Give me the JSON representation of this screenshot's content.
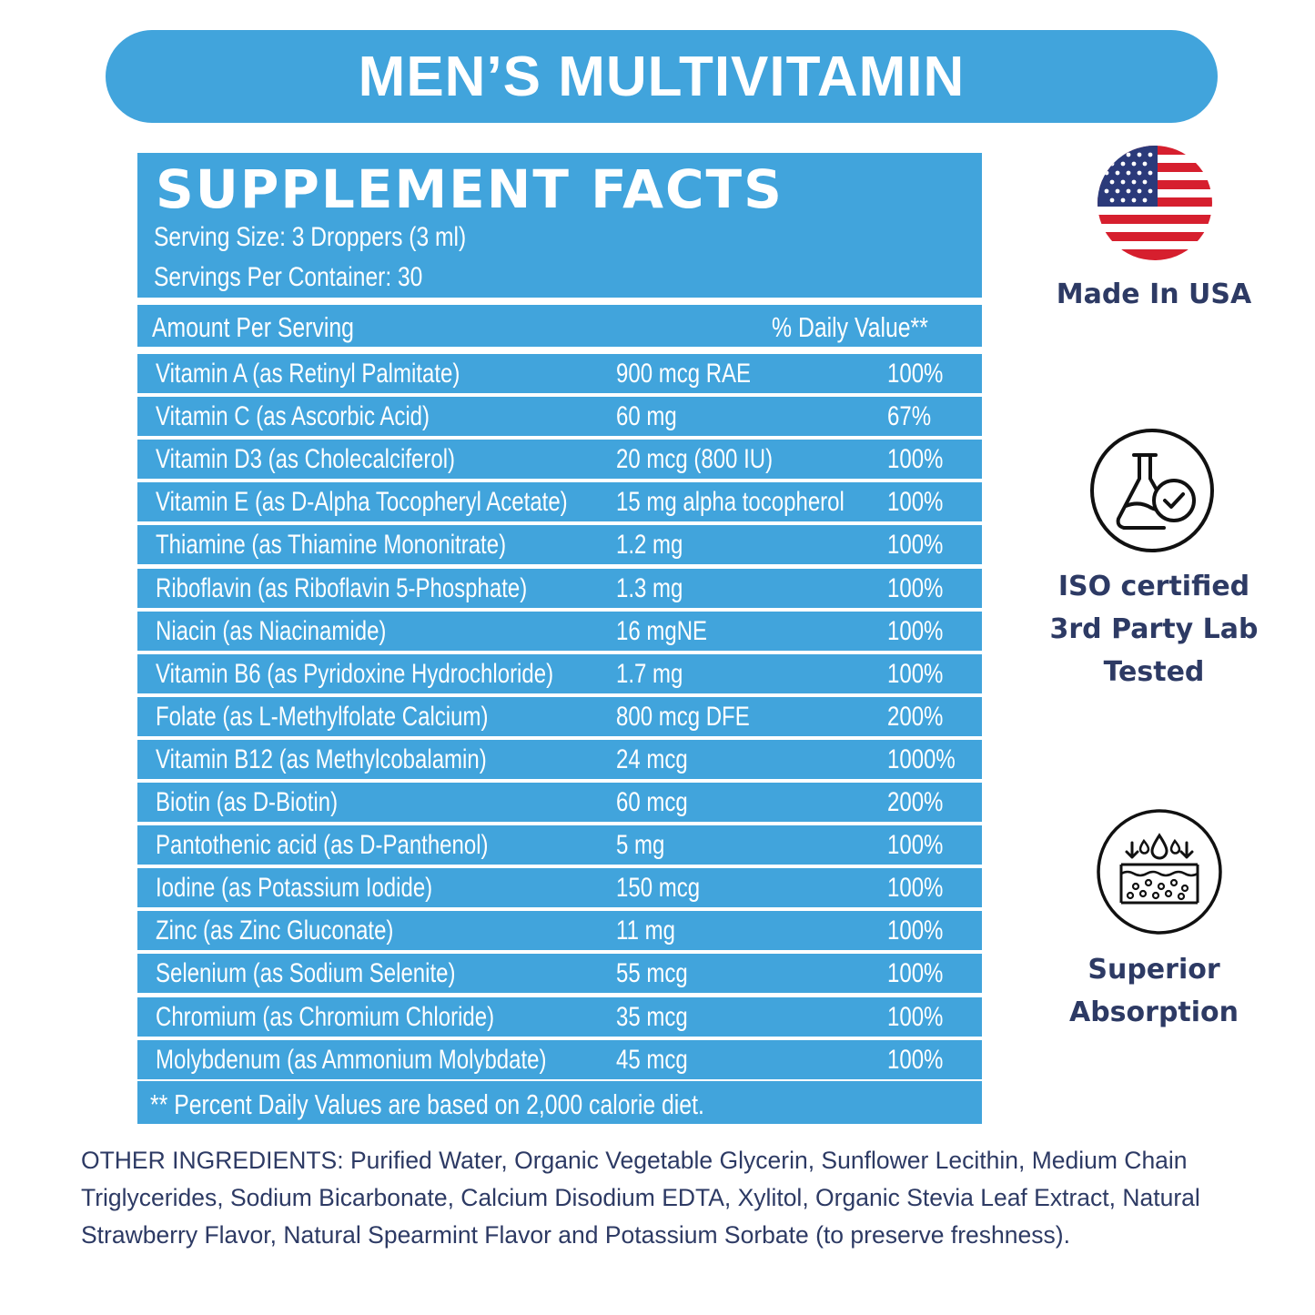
{
  "title": "MEN’S MULTIVITAMIN",
  "facts": {
    "heading": "SUPPLEMENT FACTS",
    "serving_size": "Serving Size: 3 Droppers (3 ml)",
    "servings_per_container": "Servings Per Container: 30",
    "amount_header": "Amount Per Serving",
    "dv_header": "% Daily Value**",
    "rows": [
      {
        "name": "Vitamin A (as Retinyl Palmitate)",
        "amount": "900 mcg RAE",
        "dv": "100%"
      },
      {
        "name": "Vitamin C (as Ascorbic Acid)",
        "amount": "60 mg",
        "dv": "67%"
      },
      {
        "name": "Vitamin D3 (as Cholecalciferol)",
        "amount": "20 mcg (800 IU)",
        "dv": "100%"
      },
      {
        "name": "Vitamin E (as D-Alpha Tocopheryl Acetate)",
        "amount": "15 mg alpha tocopherol",
        "dv": "100%"
      },
      {
        "name": "Thiamine (as Thiamine Mononitrate)",
        "amount": "1.2 mg",
        "dv": "100%"
      },
      {
        "name": "Riboflavin (as Riboflavin 5-Phosphate)",
        "amount": "1.3 mg",
        "dv": "100%"
      },
      {
        "name": "Niacin (as Niacinamide)",
        "amount": "16 mgNE",
        "dv": "100%"
      },
      {
        "name": "Vitamin B6 (as Pyridoxine Hydrochloride)",
        "amount": "1.7 mg",
        "dv": "100%"
      },
      {
        "name": "Folate (as L-Methylfolate Calcium)",
        "amount": "800 mcg DFE",
        "dv": "200%"
      },
      {
        "name": "Vitamin B12 (as Methylcobalamin)",
        "amount": "24 mcg",
        "dv": "1000%"
      },
      {
        "name": "Biotin (as D-Biotin)",
        "amount": "60 mcg",
        "dv": "200%"
      },
      {
        "name": "Pantothenic acid (as D-Panthenol)",
        "amount": "5 mg",
        "dv": "100%"
      },
      {
        "name": "Iodine (as Potassium Iodide)",
        "amount": "150 mcg",
        "dv": "100%"
      },
      {
        "name": "Zinc (as Zinc Gluconate)",
        "amount": "11 mg",
        "dv": "100%"
      },
      {
        "name": "Selenium (as Sodium Selenite)",
        "amount": "55 mcg",
        "dv": "100%"
      },
      {
        "name": "Chromium (as Chromium Chloride)",
        "amount": "35 mcg",
        "dv": "100%"
      },
      {
        "name": "Molybdenum (as Ammonium Molybdate)",
        "amount": "45 mcg",
        "dv": "100%"
      }
    ],
    "footnote": "** Percent Daily Values are based on 2,000 calorie diet."
  },
  "badges": {
    "usa": "Made In USA",
    "lab_line1": "ISO certified",
    "lab_line2": "3rd Party Lab",
    "lab_line3": "Tested",
    "absorb_line1": "Superior",
    "absorb_line2": "Absorption"
  },
  "other_ingredients": "OTHER INGREDIENTS: Purified Water, Organic Vegetable Glycerin, Sunflower Lecithin, Medium Chain Triglycerides, Sodium Bicarbonate, Calcium Disodium EDTA, Xylitol, Organic Stevia Leaf Extract, Natural Strawberry Flavor, Natural Spearmint Flavor and Potassium Sorbate (to preserve freshness).",
  "colors": {
    "brand_blue": "#41a4dc",
    "text_navy": "#2d3a64",
    "flag_red": "#d61f2e",
    "flag_blue": "#2b3a7a"
  },
  "icons": [
    "usa-flag-icon",
    "lab-flask-check-icon",
    "skin-absorption-icon"
  ]
}
